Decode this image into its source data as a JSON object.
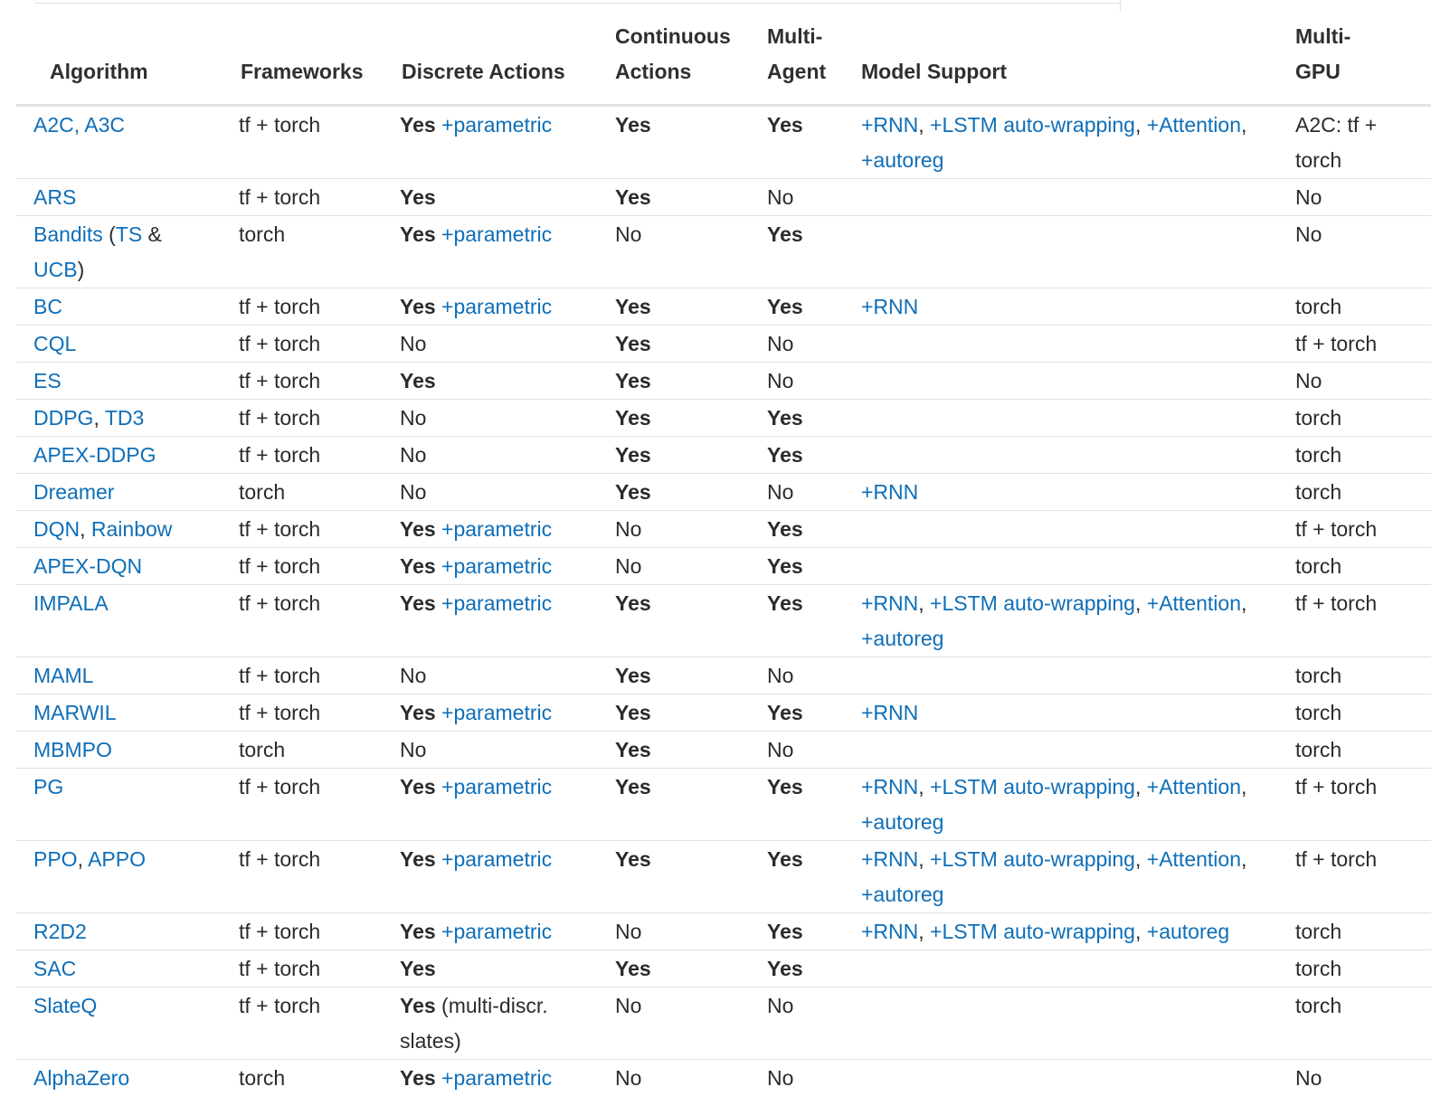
{
  "headers": {
    "algorithm": "Algorithm",
    "frameworks": "Frameworks",
    "discrete": "Discrete Actions",
    "continuous_l1": "Continuous",
    "continuous_l2": "Actions",
    "multi_agent_l1": "Multi-",
    "multi_agent_l2": "Agent",
    "model_support": "Model Support",
    "multi_gpu_l1": "Multi-",
    "multi_gpu_l2": "GPU"
  },
  "links": {
    "parametric": "+parametric",
    "rnn": "+RNN",
    "lstm": "+LSTM auto-wrapping",
    "attention": "+Attention",
    "autoreg": "+autoreg"
  },
  "rows": [
    {
      "algorithm": "A2C, A3C",
      "frameworks": "tf + torch",
      "discrete": "Yes",
      "continuous": "Yes",
      "multi_agent": "Yes",
      "multi_gpu": "A2C: tf + torch"
    },
    {
      "algorithm": "ARS",
      "frameworks": "tf + torch",
      "discrete": "Yes",
      "continuous": "Yes",
      "multi_agent": "No",
      "multi_gpu": "No"
    },
    {
      "algorithm": "Bandits",
      "algorithm_open": " (",
      "algorithm_ts": "TS",
      "algorithm_amp": " & ",
      "algorithm_ucb": "UCB",
      "algorithm_close": ")",
      "frameworks": "torch",
      "discrete": "Yes",
      "continuous": "No",
      "multi_agent": "Yes",
      "multi_gpu": "No"
    },
    {
      "algorithm": "BC",
      "frameworks": "tf + torch",
      "discrete": "Yes",
      "continuous": "Yes",
      "multi_agent": "Yes",
      "multi_gpu": "torch"
    },
    {
      "algorithm": "CQL",
      "frameworks": "tf + torch",
      "discrete": "No",
      "continuous": "Yes",
      "multi_agent": "No",
      "multi_gpu": "tf + torch"
    },
    {
      "algorithm": "ES",
      "frameworks": "tf + torch",
      "discrete": "Yes",
      "continuous": "Yes",
      "multi_agent": "No",
      "multi_gpu": "No"
    },
    {
      "algorithm": "DDPG",
      "algorithm_sep": ", ",
      "algorithm_2": "TD3",
      "frameworks": "tf + torch",
      "discrete": "No",
      "continuous": "Yes",
      "multi_agent": "Yes",
      "multi_gpu": "torch"
    },
    {
      "algorithm": "APEX-DDPG",
      "frameworks": "tf + torch",
      "discrete": "No",
      "continuous": "Yes",
      "multi_agent": "Yes",
      "multi_gpu": "torch"
    },
    {
      "algorithm": "Dreamer",
      "frameworks": "torch",
      "discrete": "No",
      "continuous": "Yes",
      "multi_agent": "No",
      "multi_gpu": "torch"
    },
    {
      "algorithm": "DQN",
      "algorithm_sep": ", ",
      "algorithm_2": "Rainbow",
      "frameworks": "tf + torch",
      "discrete": "Yes",
      "continuous": "No",
      "multi_agent": "Yes",
      "multi_gpu": "tf + torch"
    },
    {
      "algorithm": "APEX-DQN",
      "frameworks": "tf + torch",
      "discrete": "Yes",
      "continuous": "No",
      "multi_agent": "Yes",
      "multi_gpu": "torch"
    },
    {
      "algorithm": "IMPALA",
      "frameworks": "tf + torch",
      "discrete": "Yes",
      "continuous": "Yes",
      "multi_agent": "Yes",
      "multi_gpu": "tf + torch"
    },
    {
      "algorithm": "MAML",
      "frameworks": "tf + torch",
      "discrete": "No",
      "continuous": "Yes",
      "multi_agent": "No",
      "multi_gpu": "torch"
    },
    {
      "algorithm": "MARWIL",
      "frameworks": "tf + torch",
      "discrete": "Yes",
      "continuous": "Yes",
      "multi_agent": "Yes",
      "multi_gpu": "torch"
    },
    {
      "algorithm": "MBMPO",
      "frameworks": "torch",
      "discrete": "No",
      "continuous": "Yes",
      "multi_agent": "No",
      "multi_gpu": "torch"
    },
    {
      "algorithm": "PG",
      "frameworks": "tf + torch",
      "discrete": "Yes",
      "continuous": "Yes",
      "multi_agent": "Yes",
      "multi_gpu": "tf + torch"
    },
    {
      "algorithm": "PPO",
      "algorithm_sep": ", ",
      "algorithm_2": "APPO",
      "frameworks": "tf + torch",
      "discrete": "Yes",
      "continuous": "Yes",
      "multi_agent": "Yes",
      "multi_gpu": "tf + torch"
    },
    {
      "algorithm": "R2D2",
      "frameworks": "tf + torch",
      "discrete": "Yes",
      "continuous": "No",
      "multi_agent": "Yes",
      "multi_gpu": "torch"
    },
    {
      "algorithm": "SAC",
      "frameworks": "tf + torch",
      "discrete": "Yes",
      "continuous": "Yes",
      "multi_agent": "Yes",
      "multi_gpu": "torch"
    },
    {
      "algorithm": "SlateQ",
      "frameworks": "tf + torch",
      "discrete": "Yes",
      "discrete_note": " (multi-discr. slates)",
      "continuous": "No",
      "multi_agent": "No",
      "multi_gpu": "torch"
    },
    {
      "algorithm": "AlphaZero",
      "frameworks": "torch",
      "discrete": "Yes",
      "continuous": "No",
      "multi_agent": "No",
      "multi_gpu": "No"
    }
  ]
}
